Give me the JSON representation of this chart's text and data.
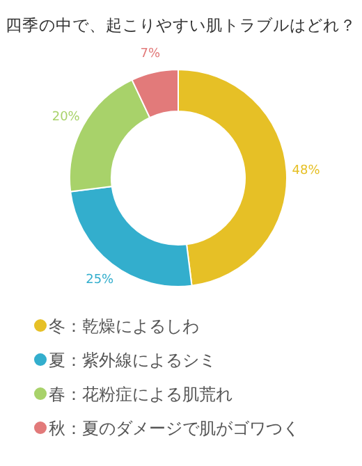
{
  "chart_data": {
    "type": "donut",
    "title": "四季の中で、起こりやすい肌トラブルはどれ？",
    "categories": [
      "冬：乾燥によるしわ",
      "夏：紫外線によるシミ",
      "春：花粉症による肌荒れ",
      "秋：夏のダメージで肌がゴワつく"
    ],
    "values": [
      48,
      25,
      20,
      7
    ],
    "colors": [
      "#e6c026",
      "#33aecd",
      "#a8d26a",
      "#e27a7a"
    ],
    "value_labels": [
      "48%",
      "25%",
      "20%",
      "7%"
    ],
    "legend": "bottom"
  }
}
